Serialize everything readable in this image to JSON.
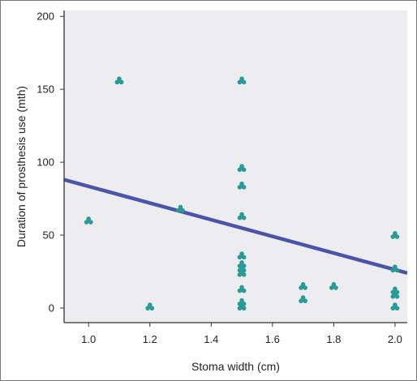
{
  "chart_data": {
    "type": "scatter",
    "title": "",
    "xlabel": "Stoma width (cm)",
    "ylabel": "Duration of prosthesis use (mth)",
    "xlim": [
      0.92,
      2.04
    ],
    "ylim": [
      -10,
      204
    ],
    "x_ticks": [
      1.0,
      1.2,
      1.4,
      1.6,
      1.8,
      2.0
    ],
    "x_tick_labels": [
      "1.0",
      "1.2",
      "1.4",
      "1.6",
      "1.8",
      "2.0"
    ],
    "y_ticks": [
      0,
      50,
      100,
      150,
      200
    ],
    "y_tick_labels": [
      "0",
      "50",
      "100",
      "150",
      "200"
    ],
    "grid": false,
    "legend": "none",
    "colors": {
      "plot_background": "#ededef",
      "points": "#2a9a96",
      "fit_line": "#4a55a8",
      "axis": "#333333"
    },
    "points": [
      {
        "x": 1.0,
        "y": 60
      },
      {
        "x": 1.1,
        "y": 156
      },
      {
        "x": 1.2,
        "y": 1
      },
      {
        "x": 1.3,
        "y": 68
      },
      {
        "x": 1.5,
        "y": 156
      },
      {
        "x": 1.5,
        "y": 96
      },
      {
        "x": 1.5,
        "y": 84
      },
      {
        "x": 1.5,
        "y": 63
      },
      {
        "x": 1.5,
        "y": 36
      },
      {
        "x": 1.5,
        "y": 30
      },
      {
        "x": 1.5,
        "y": 27
      },
      {
        "x": 1.5,
        "y": 24
      },
      {
        "x": 1.5,
        "y": 13
      },
      {
        "x": 1.5,
        "y": 4
      },
      {
        "x": 1.5,
        "y": 1
      },
      {
        "x": 1.7,
        "y": 15
      },
      {
        "x": 1.7,
        "y": 6
      },
      {
        "x": 1.8,
        "y": 15
      },
      {
        "x": 2.0,
        "y": 50
      },
      {
        "x": 2.0,
        "y": 27
      },
      {
        "x": 2.0,
        "y": 12
      },
      {
        "x": 2.0,
        "y": 9
      },
      {
        "x": 2.0,
        "y": 1
      }
    ],
    "fit_line": {
      "x": [
        0.92,
        2.04
      ],
      "y": [
        88,
        24
      ]
    }
  }
}
